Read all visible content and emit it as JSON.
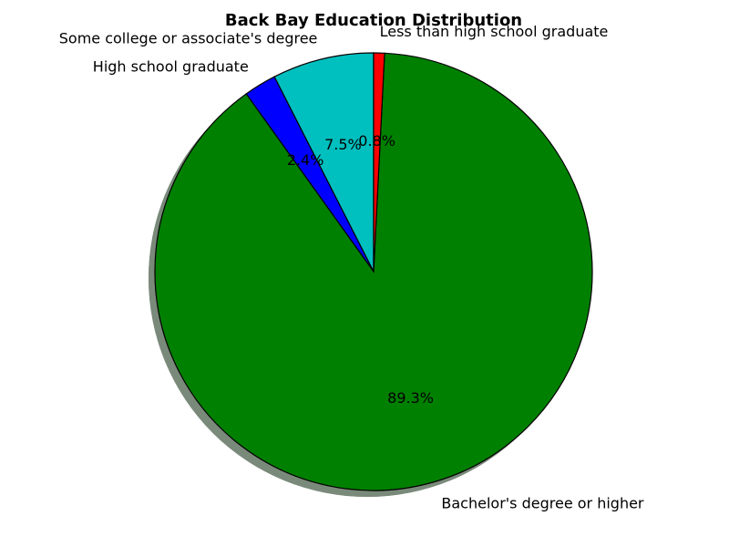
{
  "chart_data": {
    "type": "pie",
    "title": "Back Bay Education Distribution",
    "categories": [
      "Less than high school graduate",
      "High school graduate",
      "Some college or associate's degree",
      "Bachelor's degree or higher"
    ],
    "values": [
      0.8,
      2.4,
      7.5,
      89.3
    ],
    "percent_labels": [
      "0.8%",
      "2.4%",
      "7.5%",
      "89.3%"
    ],
    "colors": [
      "#ff0000",
      "#0000ff",
      "#00bfbf",
      "#008000"
    ],
    "slice_order": [
      "Some college or associate's degree",
      "High school graduate",
      "Bachelor's degree or higher",
      "Less than high school graduate"
    ],
    "shadow": true,
    "legend": "none"
  }
}
